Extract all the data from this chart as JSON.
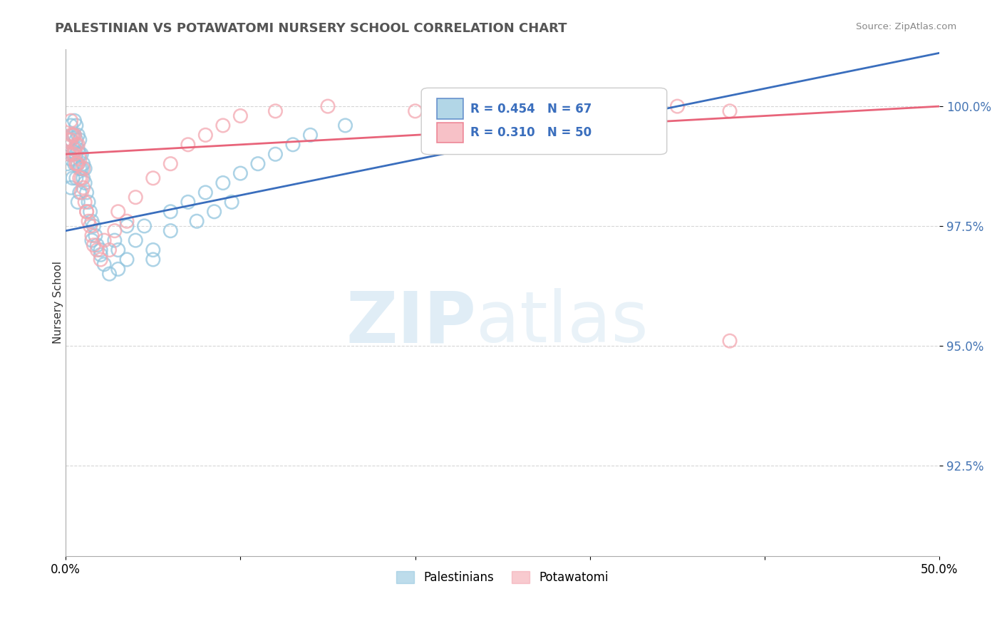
{
  "title": "PALESTINIAN VS POTAWATOMI NURSERY SCHOOL CORRELATION CHART",
  "source": "Source: ZipAtlas.com",
  "ylabel": "Nursery School",
  "ytick_labels": [
    "100.0%",
    "97.5%",
    "95.0%",
    "92.5%"
  ],
  "ytick_values": [
    1.0,
    0.975,
    0.95,
    0.925
  ],
  "xlim": [
    0.0,
    0.5
  ],
  "ylim": [
    0.906,
    1.012
  ],
  "legend_r1": "0.454",
  "legend_n1": "67",
  "legend_r2": "0.310",
  "legend_n2": "50",
  "blue_color": "#92c5de",
  "pink_color": "#f4a7b0",
  "blue_line_color": "#3a6ebd",
  "pink_line_color": "#e8647a",
  "blue_x": [
    0.001,
    0.002,
    0.002,
    0.003,
    0.003,
    0.003,
    0.004,
    0.004,
    0.005,
    0.005,
    0.005,
    0.005,
    0.006,
    0.006,
    0.006,
    0.007,
    0.007,
    0.007,
    0.008,
    0.008,
    0.008,
    0.009,
    0.009,
    0.01,
    0.01,
    0.011,
    0.011,
    0.012,
    0.013,
    0.014,
    0.015,
    0.016,
    0.017,
    0.018,
    0.02,
    0.022,
    0.025,
    0.028,
    0.03,
    0.035,
    0.04,
    0.045,
    0.05,
    0.06,
    0.07,
    0.08,
    0.09,
    0.1,
    0.11,
    0.12,
    0.035,
    0.06,
    0.075,
    0.085,
    0.095,
    0.015,
    0.02,
    0.05,
    0.03,
    0.13,
    0.14,
    0.16,
    0.007,
    0.004,
    0.003,
    0.006,
    0.008
  ],
  "blue_y": [
    0.988,
    0.99,
    0.993,
    0.989,
    0.993,
    0.996,
    0.99,
    0.994,
    0.988,
    0.991,
    0.994,
    0.997,
    0.99,
    0.993,
    0.996,
    0.988,
    0.991,
    0.994,
    0.987,
    0.99,
    0.993,
    0.987,
    0.99,
    0.985,
    0.988,
    0.984,
    0.987,
    0.982,
    0.98,
    0.978,
    0.976,
    0.975,
    0.973,
    0.971,
    0.969,
    0.967,
    0.965,
    0.972,
    0.97,
    0.975,
    0.972,
    0.975,
    0.97,
    0.978,
    0.98,
    0.982,
    0.984,
    0.986,
    0.988,
    0.99,
    0.968,
    0.974,
    0.976,
    0.978,
    0.98,
    0.972,
    0.97,
    0.968,
    0.966,
    0.992,
    0.994,
    0.996,
    0.98,
    0.985,
    0.983,
    0.985,
    0.982
  ],
  "pink_x": [
    0.001,
    0.002,
    0.003,
    0.003,
    0.004,
    0.004,
    0.005,
    0.005,
    0.006,
    0.006,
    0.007,
    0.007,
    0.008,
    0.008,
    0.009,
    0.01,
    0.01,
    0.011,
    0.012,
    0.013,
    0.014,
    0.015,
    0.016,
    0.018,
    0.02,
    0.022,
    0.025,
    0.028,
    0.03,
    0.035,
    0.04,
    0.05,
    0.06,
    0.07,
    0.08,
    0.09,
    0.1,
    0.12,
    0.15,
    0.2,
    0.25,
    0.28,
    0.32,
    0.35,
    0.38,
    0.005,
    0.003,
    0.006,
    0.009,
    0.012
  ],
  "pink_y": [
    0.993,
    0.99,
    0.993,
    0.997,
    0.99,
    0.994,
    0.99,
    0.994,
    0.988,
    0.992,
    0.988,
    0.992,
    0.985,
    0.989,
    0.985,
    0.983,
    0.987,
    0.98,
    0.978,
    0.976,
    0.975,
    0.973,
    0.971,
    0.97,
    0.968,
    0.972,
    0.97,
    0.974,
    0.978,
    0.976,
    0.981,
    0.985,
    0.988,
    0.992,
    0.994,
    0.996,
    0.998,
    0.999,
    1.0,
    0.999,
    0.998,
    0.999,
    1.0,
    1.0,
    0.999,
    0.991,
    0.994,
    0.988,
    0.982,
    0.978
  ],
  "pink_isolated_x": [
    0.38
  ],
  "pink_isolated_y": [
    0.951
  ]
}
